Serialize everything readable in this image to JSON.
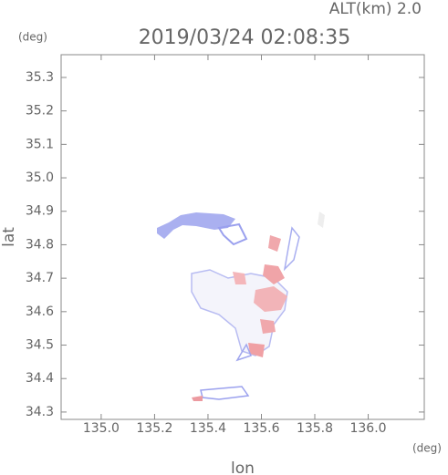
{
  "chart_data": {
    "type": "map",
    "title": "2019/03/24 02:08:35",
    "subtitle": "ALT(km) 2.0",
    "x_label": "lon",
    "y_label": "lat",
    "x_unit": "(deg)",
    "y_unit": "(deg)",
    "xlim": [
      134.85,
      136.21
    ],
    "ylim": [
      34.278,
      35.368
    ],
    "xticks": [
      {
        "value": 135.0,
        "label": "135.0"
      },
      135.2,
      135.4,
      135.6,
      135.8,
      {
        "value": 136.0,
        "label": "136.0"
      }
    ],
    "yticks": [
      35.3,
      35.2,
      35.1,
      {
        "value": 35.0,
        "label": "35.0"
      },
      34.9,
      34.8,
      34.7,
      34.6,
      34.5,
      34.4,
      34.3
    ],
    "grid": false
  }
}
